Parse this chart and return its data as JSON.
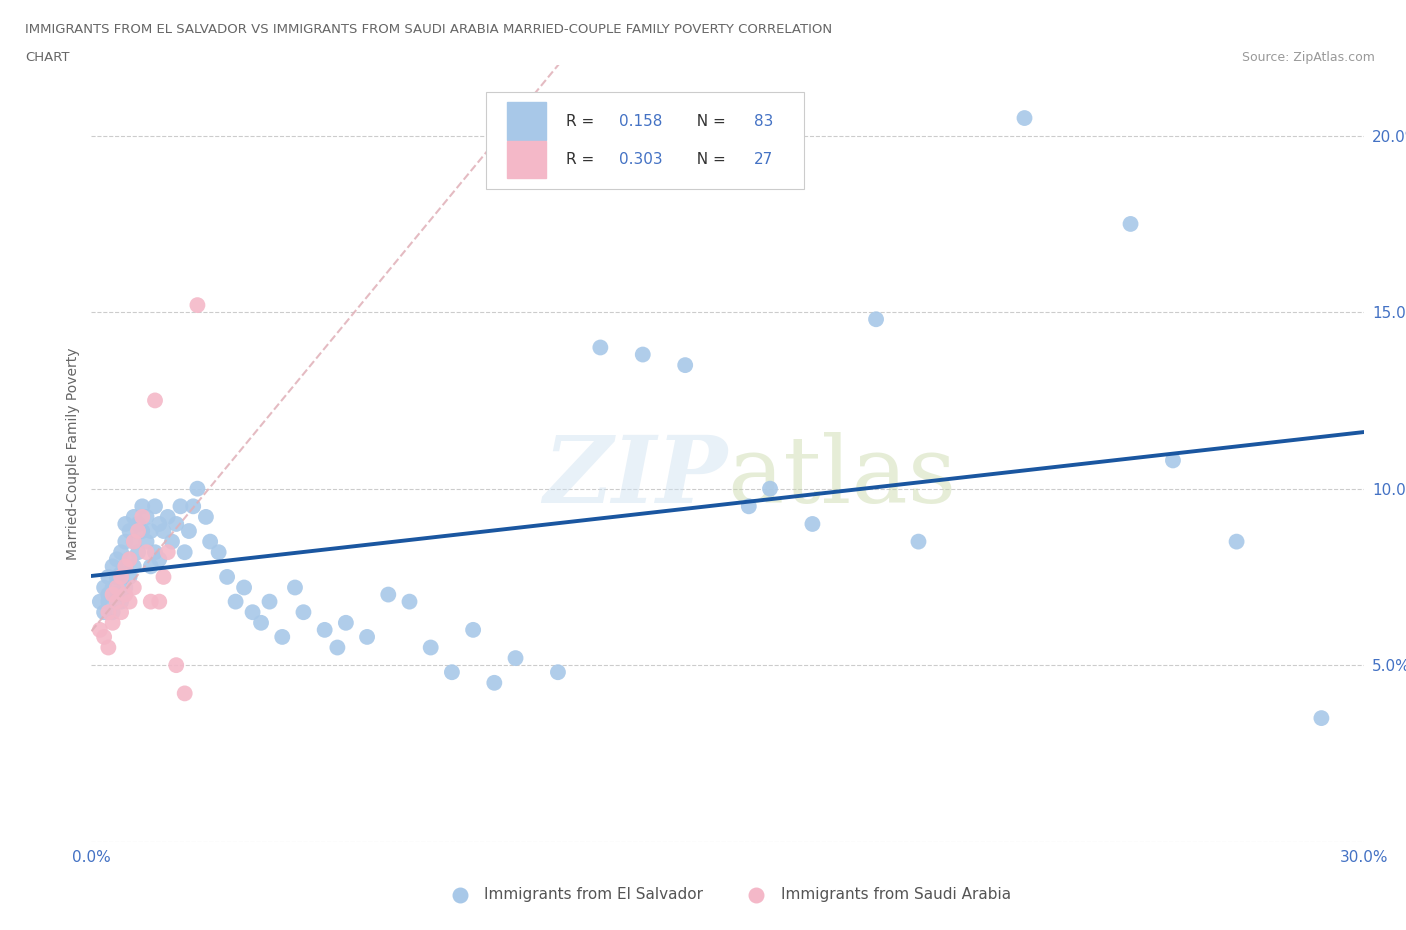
{
  "title_line1": "IMMIGRANTS FROM EL SALVADOR VS IMMIGRANTS FROM SAUDI ARABIA MARRIED-COUPLE FAMILY POVERTY CORRELATION",
  "title_line2": "CHART",
  "source_text": "Source: ZipAtlas.com",
  "ylabel": "Married-Couple Family Poverty",
  "xlim": [
    0.0,
    0.3
  ],
  "ylim": [
    0.0,
    0.22
  ],
  "r_el_salvador": 0.158,
  "n_el_salvador": 83,
  "r_saudi_arabia": 0.303,
  "n_saudi_arabia": 27,
  "color_el_salvador": "#a8c8e8",
  "color_saudi_arabia": "#f4b8c8",
  "trend_color_el_salvador": "#1a56a0",
  "trend_color_saudi_arabia": "#d08090",
  "watermark": "ZIPatlas",
  "background_color": "#ffffff",
  "el_salvador_x": [
    0.002,
    0.003,
    0.003,
    0.004,
    0.004,
    0.004,
    0.005,
    0.005,
    0.005,
    0.006,
    0.006,
    0.006,
    0.007,
    0.007,
    0.007,
    0.008,
    0.008,
    0.008,
    0.008,
    0.009,
    0.009,
    0.009,
    0.01,
    0.01,
    0.01,
    0.011,
    0.011,
    0.012,
    0.012,
    0.013,
    0.013,
    0.014,
    0.014,
    0.015,
    0.015,
    0.016,
    0.016,
    0.017,
    0.018,
    0.019,
    0.02,
    0.021,
    0.022,
    0.023,
    0.024,
    0.025,
    0.027,
    0.028,
    0.03,
    0.032,
    0.034,
    0.036,
    0.038,
    0.04,
    0.042,
    0.045,
    0.048,
    0.05,
    0.055,
    0.058,
    0.06,
    0.065,
    0.07,
    0.075,
    0.08,
    0.085,
    0.09,
    0.095,
    0.1,
    0.11,
    0.12,
    0.13,
    0.14,
    0.155,
    0.16,
    0.17,
    0.185,
    0.195,
    0.22,
    0.245,
    0.255,
    0.27,
    0.29
  ],
  "el_salvador_y": [
    0.068,
    0.065,
    0.072,
    0.07,
    0.075,
    0.068,
    0.072,
    0.078,
    0.065,
    0.075,
    0.08,
    0.07,
    0.082,
    0.076,
    0.068,
    0.085,
    0.078,
    0.072,
    0.09,
    0.08,
    0.088,
    0.075,
    0.085,
    0.092,
    0.078,
    0.09,
    0.082,
    0.088,
    0.095,
    0.085,
    0.092,
    0.078,
    0.088,
    0.082,
    0.095,
    0.09,
    0.08,
    0.088,
    0.092,
    0.085,
    0.09,
    0.095,
    0.082,
    0.088,
    0.095,
    0.1,
    0.092,
    0.085,
    0.082,
    0.075,
    0.068,
    0.072,
    0.065,
    0.062,
    0.068,
    0.058,
    0.072,
    0.065,
    0.06,
    0.055,
    0.062,
    0.058,
    0.07,
    0.068,
    0.055,
    0.048,
    0.06,
    0.045,
    0.052,
    0.048,
    0.14,
    0.138,
    0.135,
    0.095,
    0.1,
    0.09,
    0.148,
    0.085,
    0.205,
    0.175,
    0.108,
    0.085,
    0.035
  ],
  "saudi_arabia_x": [
    0.002,
    0.003,
    0.004,
    0.004,
    0.005,
    0.005,
    0.006,
    0.006,
    0.007,
    0.007,
    0.008,
    0.008,
    0.009,
    0.009,
    0.01,
    0.01,
    0.011,
    0.012,
    0.013,
    0.014,
    0.015,
    0.016,
    0.017,
    0.018,
    0.02,
    0.022,
    0.025
  ],
  "saudi_arabia_y": [
    0.06,
    0.058,
    0.065,
    0.055,
    0.062,
    0.07,
    0.068,
    0.072,
    0.075,
    0.065,
    0.07,
    0.078,
    0.068,
    0.08,
    0.085,
    0.072,
    0.088,
    0.092,
    0.082,
    0.068,
    0.125,
    0.068,
    0.075,
    0.082,
    0.05,
    0.042,
    0.152
  ],
  "sa_trend_x_start": 0.0,
  "sa_trend_x_end": 0.18,
  "es_trend_x_start": 0.0,
  "es_trend_x_end": 0.3
}
